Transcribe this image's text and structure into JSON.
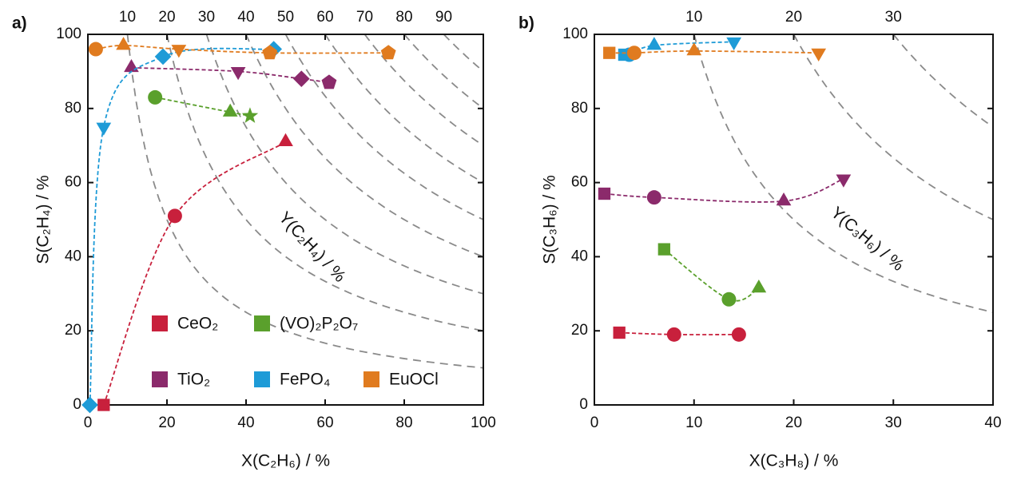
{
  "chart_data": [
    {
      "type": "scatter",
      "panel_label": "a)",
      "xlabel": "X(C₂H₆) / %",
      "ylabel": "S(C₂H₄) / %",
      "xlim": [
        0,
        100
      ],
      "ylim": [
        0,
        100
      ],
      "xticks": [
        0,
        20,
        40,
        60,
        80,
        100
      ],
      "yticks": [
        0,
        20,
        40,
        60,
        80,
        100
      ],
      "yield_curves": [
        10,
        20,
        30,
        40,
        50,
        60,
        70,
        80,
        90
      ],
      "yield_label": "Y(C₂H₄) / %",
      "legend": true,
      "series": [
        {
          "name": "CeO₂",
          "color": "#c8203c",
          "x": [
            4,
            22,
            50
          ],
          "y": [
            0,
            51,
            71
          ],
          "markers": [
            "square",
            "circle",
            "triangle"
          ]
        },
        {
          "name": "(VO)₂P₂O₇",
          "color": "#5aa02c",
          "x": [
            17,
            36,
            41
          ],
          "y": [
            83,
            79,
            78
          ],
          "markers": [
            "circle",
            "triangle",
            "star"
          ]
        },
        {
          "name": "TiO₂",
          "color": "#8b2a6b",
          "x": [
            11,
            38,
            54,
            61
          ],
          "y": [
            91,
            90,
            88,
            87
          ],
          "markers": [
            "triangle",
            "down-triangle",
            "diamond",
            "pentagon"
          ]
        },
        {
          "name": "FePO₄",
          "color": "#1e9bd7",
          "x": [
            0.5,
            4,
            19,
            47
          ],
          "y": [
            0,
            75,
            94,
            96
          ],
          "markers": [
            "diamond",
            "down-triangle",
            "diamond",
            "diamond"
          ]
        },
        {
          "name": "EuOCl",
          "color": "#e07b1f",
          "x": [
            2,
            9,
            23,
            46,
            76
          ],
          "y": [
            96,
            97,
            96,
            95,
            95
          ],
          "markers": [
            "circle",
            "triangle",
            "down-triangle",
            "pentagon",
            "pentagon"
          ]
        }
      ]
    },
    {
      "type": "scatter",
      "panel_label": "b)",
      "xlabel": "X(C₃H₈) / %",
      "ylabel": "S(C₃H₆) / %",
      "xlim": [
        0,
        40
      ],
      "ylim": [
        0,
        100
      ],
      "xticks": [
        0,
        10,
        20,
        30,
        40
      ],
      "yticks": [
        0,
        20,
        40,
        60,
        80,
        100
      ],
      "yield_curves": [
        10,
        20,
        30
      ],
      "yield_label": "Y(C₃H₆) / %",
      "legend": false,
      "series": [
        {
          "color": "#c8203c",
          "x": [
            2.5,
            8,
            14.5
          ],
          "y": [
            19.5,
            19,
            19
          ],
          "markers": [
            "square",
            "circle",
            "circle"
          ]
        },
        {
          "color": "#5aa02c",
          "x": [
            7,
            13.5,
            16.5
          ],
          "y": [
            42,
            28.5,
            31.5
          ],
          "markers": [
            "square",
            "circle",
            "triangle"
          ]
        },
        {
          "color": "#8b2a6b",
          "x": [
            1,
            6,
            19,
            25
          ],
          "y": [
            57,
            56,
            55,
            61
          ],
          "markers": [
            "square",
            "circle",
            "triangle",
            "down-triangle"
          ]
        },
        {
          "color": "#1e9bd7",
          "x": [
            3,
            3.5,
            6,
            14
          ],
          "y": [
            94.5,
            94.5,
            97,
            98
          ],
          "markers": [
            "square",
            "circle",
            "triangle",
            "down-triangle"
          ]
        },
        {
          "color": "#e07b1f",
          "x": [
            1.5,
            4,
            10,
            22.5
          ],
          "y": [
            95,
            95,
            95.5,
            95
          ],
          "markers": [
            "square",
            "circle",
            "triangle",
            "down-triangle"
          ]
        }
      ]
    }
  ]
}
